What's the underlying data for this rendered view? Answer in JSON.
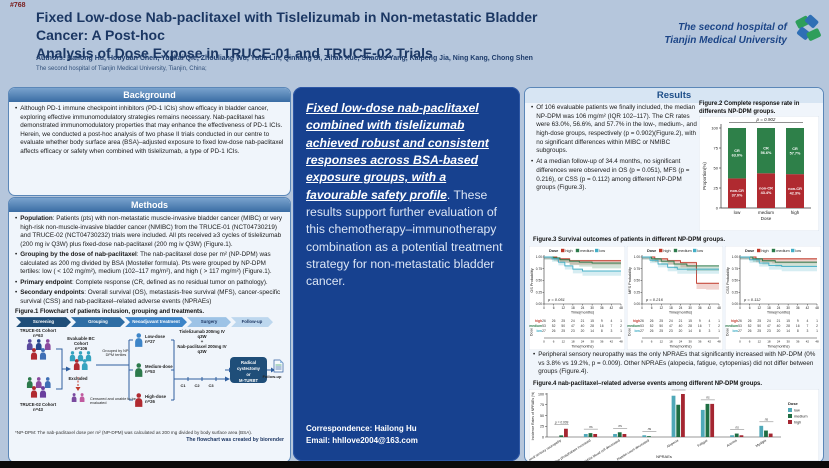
{
  "poster": {
    "number": "#768"
  },
  "header": {
    "title_line1": "Fixed Low-dose Nab-paclitaxel with Tislelizumab in Non-metastatic Bladder Cancer: A Post-hoc",
    "title_line2": "Analysis of Dose Expose in TRUCE-01 and TRUCE-02 Trials",
    "authors": "Authors: Hailong Hu, Houyuan Chen, Yunkai Qie, Zhouliang Wu, Yuda Lin, Qinliang Si, Zihan Xue, Shaobo Yang, Kaipeng Jia, Ning Kang, Chong Shen",
    "affiliation": "The second hospital of Tianjin Medical University, Tianjin, China;",
    "org_line1": "The second hospital of",
    "org_line2": "Tianjin Medical University"
  },
  "background": {
    "heading": "Background",
    "text": "Although PD-1 immune checkpoint inhibitors (PD-1 ICIs) show efficacy in bladder cancer, exploring effective immunomodulatory strategies remains necessary. Nab-paclitaxel has demonstrated immunomodulatory properties that may enhance the effectiveness of PD-1 ICIs. Herein, we conducted a post-hoc analysis of two phase II trials conducted in our centre to evaluate whether body surface area (BSA)–adjusted exposure to fixed low-dose nab-paclitaxel affects efficacy or safety when combined with tislelizumab, a type of PD-1 ICIs."
  },
  "methods": {
    "heading": "Methods",
    "items": [
      {
        "label": "Population",
        "text": ": Patients (pts) with non-metastatic muscle-invasive bladder cancer (MIBC) or very high-risk non-muscle-invasive bladder cancer (NMIBC) from the TRUCE-01 (NCT04730219) and TRUCE-02 (NCT04730232) trials were included. All pts received ≥3 cycles of tislelizumab (200 mg iv Q3W) plus fixed-dose nab-paclitaxel (200 mg iv Q3W) (Figure.1)."
      },
      {
        "label": "Grouping by the dose of nab-paclitaxel",
        "text": ": The nab-paclitaxel dose per m² (NP-DPM) was calculated as 200 mg divided by BSA (Mosteller formula). Pts were grouped by NP-DPM tertiles: low ( < 102 mg/m²), medium (102–117 mg/m²), and high ( > 117 mg/m²) (Figure.1)."
      },
      {
        "label": "Primary endpoint",
        "text": ": Complete response (CR, defined as no residual tumor on pathology)."
      },
      {
        "label": "Secondary endpoints",
        "text": ": Overall survival (OS), metastasis-free survival (MFS), cancer-specific survival (CSS) and nab-paclitaxel–related adverse events (NPRAEs)"
      }
    ]
  },
  "figure1": {
    "caption": "Figure.1 Flowchart of patients inclusion, grouping and treatments.",
    "stages": [
      "Screening",
      "Grouping",
      "Neoadjuvant treatment",
      "Surgery",
      "Follow-up"
    ],
    "cohort1_label": "TRUCE-01 Cohort",
    "cohort1_n": "n=63",
    "cohort2_label": "TRUCE-02 Cohort",
    "cohort2_n": "n=43",
    "evaluable_label": "Evaluable BC Cohort",
    "evaluable_n": "n=106",
    "excluded_label": "Excluded",
    "censored_label": "Censored and unable to be evaluated",
    "grouping_note": "Grouped by NP-DPM tertiles",
    "groups": [
      {
        "label": "Low-dose",
        "n": "n=27",
        "color": "#3d85c8"
      },
      {
        "label": "Medium-dose",
        "n": "n=53",
        "color": "#2c7a4b"
      },
      {
        "label": "High-dose",
        "n": "n=26",
        "color": "#b02a30"
      }
    ],
    "treatment_line1": "Tislelizumab 200mg IV",
    "treatment_q1": "q3W",
    "treatment_plus": "+",
    "treatment_line2": "Nab-paclitaxel 200mg IV",
    "treatment_q2": "q3W",
    "cycles": [
      "C1",
      "C2",
      "C3"
    ],
    "surgery_line1": "Radical cystectomy",
    "surgery_or": "or",
    "surgery_line2": "M-TURBT",
    "followup_label": "Follow-up",
    "footnote": "*NP-DPM:  The nab-paclitaxel dose per m² (NP-DPM) was calculated as 200 mg divided by body surface area (BSA).",
    "credit": "The flowchart was created by biorender"
  },
  "key_message": {
    "highlight": "Fixed low-dose nab-paclitaxel combined with tislelizumab achieved robust and consistent responses across BSA-based exposure groups, with a favourable safety profile",
    "rest": ". These results support further evaluation of this chemotherapy–immunotherapy combination as a potential treatment strategy for non-metastatic bladder cancer."
  },
  "correspondence": {
    "line1": "Correspondence: Hailong Hu",
    "line2": "Email: hhllove2004@163.com"
  },
  "results": {
    "heading": "Results",
    "bullet1": "Of 106 evaluable patients we finally included, the median NP-DPM was 106 mg/m² (IQR 102–117). The CR rates were 63.0%, 56.6%, and 57.7% in the low-, medium-, and high-dose groups, respectively (p = 0.902)(Figure.2), with no significant differences within MIBC or NMIBC subgroups.",
    "bullet2": "At a median follow-up of 34.4 months, no significant differences were observed in OS (p = 0.051), MFS (p = 0.216), or CSS (p = 0.112) among different NP-DPM groups (Figure.3).",
    "bullet3": "Peripheral sensory neuropathy was the only NPRAEs that significantly increased with NP-DPM (0% vs 3.8% vs 19.2%, p = 0.009). Other NPRAEs (alopecia, fatigue, cytopenias) did not differ between groups (Figure.4).",
    "fig3_caption": "Figure.3 Survival outcomes of patients in different NP-DPM groups.",
    "fig4_caption": "Figure.4 nab-paclitaxel–related adverse events among different NP-DPM groups."
  },
  "chart_data": [
    {
      "id": "fig2",
      "type": "bar",
      "subtype": "stacked",
      "title": "Figure.2 Complete response rate in differents NP-DPM groups.",
      "categories": [
        "low",
        "medium",
        "high"
      ],
      "series": [
        {
          "name": "CR",
          "color": "#2e8049",
          "values": [
            63.0,
            56.6,
            57.7
          ]
        },
        {
          "name": "non-CR",
          "color": "#b02a30",
          "values": [
            37.0,
            43.4,
            42.3
          ]
        }
      ],
      "ylabel": "Proportion(%)",
      "xlabel": "Dose",
      "ylim": [
        0,
        100
      ],
      "yticks": [
        0,
        25,
        50,
        75,
        100
      ],
      "p_label": "p = 0.902"
    },
    {
      "id": "fig3",
      "type": "line",
      "subtype": "kaplan-meier",
      "legend": {
        "title": "Dose",
        "entries": [
          {
            "name": "high",
            "color": "#c0392b"
          },
          {
            "name": "medium",
            "color": "#2c7a4b"
          },
          {
            "name": "low",
            "color": "#43aec6"
          }
        ]
      },
      "xlabel": "Time(months)",
      "xticks": [
        0,
        6,
        12,
        18,
        24,
        30,
        36,
        42,
        48
      ],
      "yticks": [
        0,
        0.25,
        0.5,
        0.75,
        1.0
      ],
      "plots": [
        {
          "ylabel": "OS Probability",
          "p_label": "p = 0.051",
          "series": {
            "high": [
              [
                0,
                1
              ],
              [
                4,
                1
              ],
              [
                8,
                0.96
              ],
              [
                14,
                0.96
              ],
              [
                16,
                0.92
              ],
              [
                48,
                0.92
              ]
            ],
            "medium": [
              [
                0,
                1
              ],
              [
                6,
                0.98
              ],
              [
                10,
                0.94
              ],
              [
                16,
                0.91
              ],
              [
                22,
                0.89
              ],
              [
                30,
                0.87
              ],
              [
                48,
                0.87
              ]
            ],
            "low": [
              [
                0,
                1
              ],
              [
                5,
                0.96
              ],
              [
                9,
                0.89
              ],
              [
                13,
                0.81
              ],
              [
                18,
                0.74
              ],
              [
                24,
                0.7
              ],
              [
                48,
                0.7
              ]
            ]
          }
        },
        {
          "ylabel": "MFS Probability",
          "p_label": "p = 0.216",
          "series": {
            "high": [
              [
                0,
                1
              ],
              [
                8,
                0.96
              ],
              [
                16,
                0.92
              ],
              [
                24,
                0.88
              ],
              [
                33,
                0.88
              ],
              [
                34,
                0.44
              ],
              [
                40,
                0.44
              ]
            ],
            "medium": [
              [
                0,
                1
              ],
              [
                6,
                0.96
              ],
              [
                12,
                0.91
              ],
              [
                20,
                0.85
              ],
              [
                28,
                0.81
              ],
              [
                48,
                0.81
              ]
            ],
            "low": [
              [
                0,
                1
              ],
              [
                5,
                0.93
              ],
              [
                10,
                0.85
              ],
              [
                16,
                0.78
              ],
              [
                22,
                0.74
              ],
              [
                48,
                0.74
              ]
            ]
          }
        },
        {
          "ylabel": "CSS Probability",
          "p_label": "p = 0.112",
          "series": {
            "high": [
              [
                0,
                1
              ],
              [
                10,
                0.96
              ],
              [
                20,
                0.96
              ],
              [
                48,
                0.96
              ]
            ],
            "medium": [
              [
                0,
                1
              ],
              [
                8,
                0.96
              ],
              [
                14,
                0.92
              ],
              [
                22,
                0.89
              ],
              [
                48,
                0.89
              ]
            ],
            "low": [
              [
                0,
                1
              ],
              [
                6,
                0.94
              ],
              [
                12,
                0.87
              ],
              [
                18,
                0.82
              ],
              [
                26,
                0.8
              ],
              [
                48,
                0.8
              ]
            ]
          }
        }
      ],
      "risk_table": {
        "row_label": "Dose",
        "rows": [
          {
            "name": "high",
            "color": "#c0392b",
            "counts": [
              26,
              26,
              25,
              24,
              21,
              15,
              9,
              4,
              1
            ]
          },
          {
            "name": "medium",
            "color": "#2c7a4b",
            "counts": [
              53,
              52,
              50,
              47,
              40,
              28,
              16,
              7,
              2
            ]
          },
          {
            "name": "low",
            "color": "#43aec6",
            "counts": [
              27,
              26,
              25,
              23,
              20,
              14,
              8,
              3,
              1
            ]
          }
        ]
      }
    },
    {
      "id": "fig4",
      "type": "bar",
      "subtype": "grouped",
      "categories": [
        "Peripheral sensory neuropathy",
        "Alkaline phosphatase increased",
        "White blood cell decreased",
        "Platelet count decreased",
        "Alopecia",
        "Fatigue",
        "Anemia",
        "Myalgia"
      ],
      "series": [
        {
          "name": "low",
          "color": "#4fa8b8",
          "values": [
            0,
            7,
            7,
            4,
            96,
            63,
            4,
            26
          ]
        },
        {
          "name": "medium",
          "color": "#1f6e43",
          "values": [
            3.8,
            9,
            11,
            2,
            75,
            77,
            8,
            15
          ]
        },
        {
          "name": "high",
          "color": "#a42631",
          "values": [
            19.2,
            7,
            7,
            0,
            100,
            77,
            4,
            8
          ]
        }
      ],
      "ylabel": "Incidence Rates of NPRAEs (%)",
      "xlabel": "NPRAEs",
      "ylim": [
        0,
        100
      ],
      "yticks": [
        0,
        25,
        50,
        75,
        100
      ],
      "annotations": [
        "p = 0.009",
        "ns",
        "ns",
        "ns",
        "ns",
        "ns",
        "ns",
        "ns"
      ],
      "legend": {
        "title": "Dose",
        "entries": [
          "low",
          "medium",
          "high"
        ]
      }
    }
  ]
}
